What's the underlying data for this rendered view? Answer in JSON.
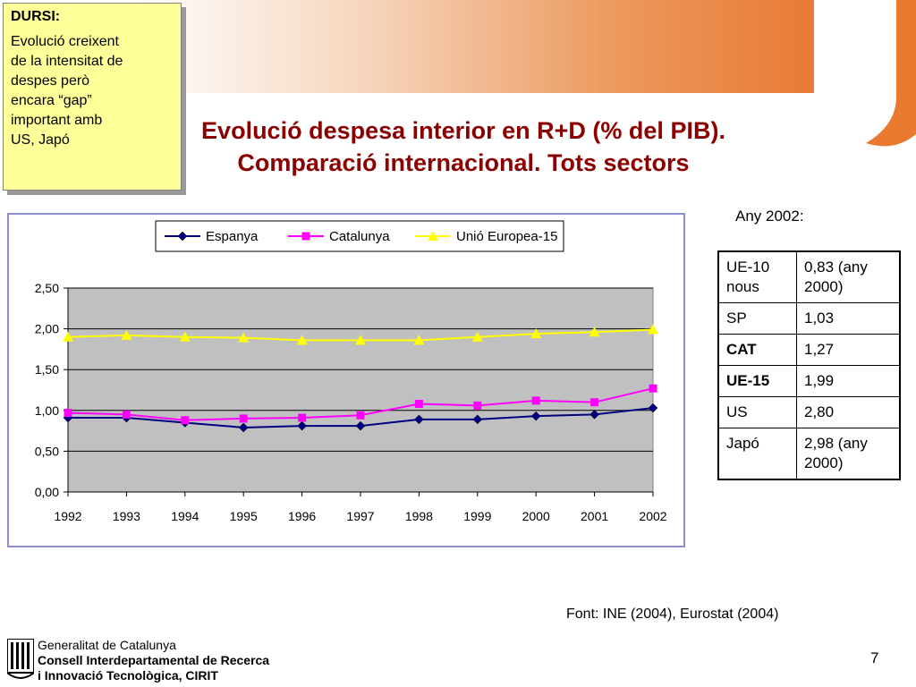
{
  "note": {
    "title": "DURSI:",
    "body": "Evolució creixent\nde la intensitat de\ndespes però\nencara “gap”\nimportant amb\nUS, Japó"
  },
  "title": {
    "line1": "Evolució despesa interior en R+D (% del PIB).",
    "line2": "Comparació internacional. Tots sectors"
  },
  "comparison": {
    "label": "Any 2002:",
    "rows": [
      {
        "name": "UE-10 nous",
        "value": "0,83 (any 2000)",
        "bold": false
      },
      {
        "name": "SP",
        "value": "1,03",
        "bold": false
      },
      {
        "name": "CAT",
        "value": "1,27",
        "bold": true
      },
      {
        "name": "UE-15",
        "value": "1,99",
        "bold": true
      },
      {
        "name": "US",
        "value": "2,80",
        "bold": false
      },
      {
        "name": "Japó",
        "value": "2,98 (any 2000)",
        "bold": false
      }
    ]
  },
  "source": "Font: INE (2004), Eurostat (2004)",
  "footer": {
    "line1": "Generalitat de Catalunya",
    "line2": "Consell Interdepartamental de Recerca",
    "line3": "i Innovació Tecnològica, CIRIT"
  },
  "page_number": "7",
  "colors": {
    "title": "#8b0000",
    "espanya": "#000080",
    "catalunya": "#ff00ff",
    "ue15": "#ffff00",
    "plot_bg": "#c0c0c0",
    "note_bg": "#ffff99",
    "brand_orange": "#e8792f"
  },
  "chart_data": {
    "type": "line",
    "title": "",
    "xlabel": "",
    "ylabel": "",
    "categories": [
      "1992",
      "1993",
      "1994",
      "1995",
      "1996",
      "1997",
      "1998",
      "1999",
      "2000",
      "2001",
      "2002"
    ],
    "ylim": [
      0,
      2.5
    ],
    "yticks": [
      "0,00",
      "0,50",
      "1,00",
      "1,50",
      "2,00",
      "2,50"
    ],
    "grid": true,
    "legend_position": "top",
    "series": [
      {
        "name": "Espanya",
        "marker": "diamond",
        "color": "#000080",
        "values": [
          0.91,
          0.91,
          0.85,
          0.79,
          0.81,
          0.81,
          0.89,
          0.89,
          0.93,
          0.95,
          1.03
        ]
      },
      {
        "name": "Catalunya",
        "marker": "square",
        "color": "#ff00ff",
        "values": [
          0.97,
          0.95,
          0.88,
          0.9,
          0.91,
          0.94,
          1.08,
          1.06,
          1.12,
          1.1,
          1.27
        ]
      },
      {
        "name": "Unió Europea-15",
        "marker": "triangle",
        "color": "#ffff00",
        "values": [
          1.9,
          1.92,
          1.9,
          1.89,
          1.86,
          1.86,
          1.86,
          1.9,
          1.94,
          1.96,
          1.99
        ]
      }
    ]
  }
}
